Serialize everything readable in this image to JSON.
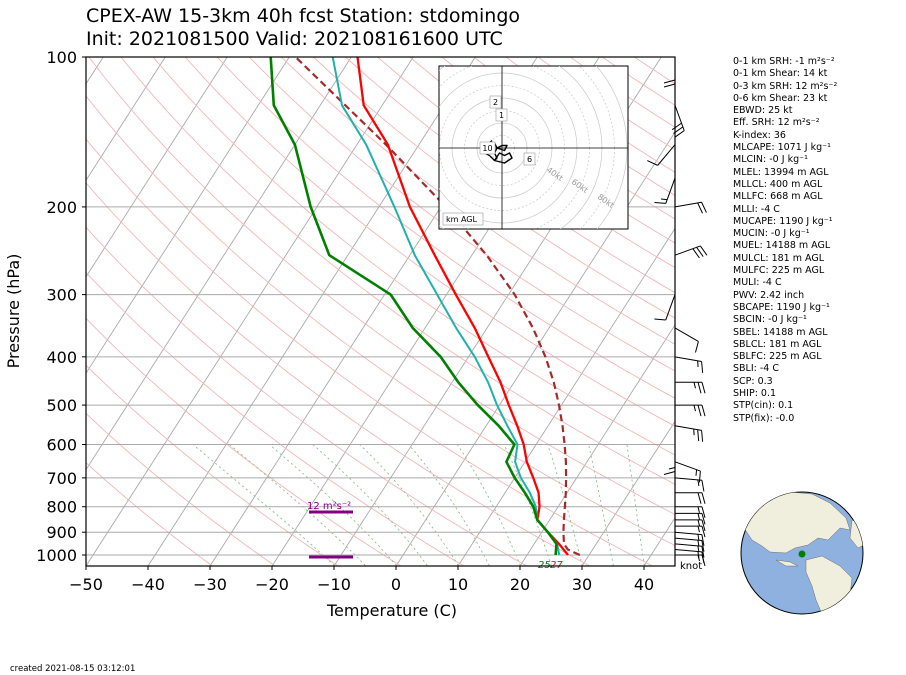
{
  "header": {
    "title_line1": "CPEX-AW 15-3km  40h fcst  Station: stdomingo",
    "title_line2": "Init: 2021081500  Valid: 202108161600 UTC"
  },
  "footer": {
    "created": "created 2021-08-15 03:12:01"
  },
  "stats": [
    "0-1 km SRH: -1 m²s⁻²",
    "0-1 km Shear: 14 kt",
    "0-3 km SRH: 12 m²s⁻²",
    "0-6 km Shear: 23 kt",
    "EBWD: 25 kt",
    "Eff. SRH: 12 m²s⁻²",
    "K-index: 36",
    "MLCAPE: 1071 J kg⁻¹",
    "MLCIN: -0 J kg⁻¹",
    "MLEL: 13994 m AGL",
    "MLLCL: 400 m AGL",
    "MLLFC: 668 m AGL",
    "MLLI: -4 C",
    "MUCAPE: 1190 J kg⁻¹",
    "MUCIN: -0 J kg⁻¹",
    "MUEL: 14188 m AGL",
    "MULCL: 181 m AGL",
    "MULFC: 225 m AGL",
    "MULI: -4 C",
    "PWV: 2.42 inch",
    "SBCAPE: 1190 J kg⁻¹",
    "SBCIN: -0 J kg⁻¹",
    "SBEL: 14188 m AGL",
    "SBLCL: 181 m AGL",
    "SBLFC: 225 m AGL",
    "SBLI: -4 C",
    "SCP: 0.3",
    "SHIP: 0.1",
    "STP(cin): 0.1",
    "STP(fix): -0.0"
  ],
  "chart_data": {
    "type": "line",
    "subtype": "skew-T log-P",
    "xlabel": "Temperature (C)",
    "ylabel": "Pressure (hPa)",
    "xlim": [
      -50,
      45
    ],
    "ylim": [
      1050,
      100
    ],
    "y_scale": "log",
    "x_ticks": [
      -50,
      -40,
      -30,
      -20,
      -10,
      0,
      10,
      20,
      30,
      40
    ],
    "x_tick_labels": [
      "−50",
      "−40",
      "−30",
      "−20",
      "−10",
      "0",
      "10",
      "20",
      "30",
      "40"
    ],
    "y_ticks": [
      1000,
      900,
      800,
      700,
      600,
      500,
      400,
      300,
      200,
      100
    ],
    "y_tick_labels": [
      "1000",
      "900",
      "800",
      "700",
      "600",
      "500",
      "400",
      "300",
      "200",
      "100"
    ],
    "surface_temp_label": "27",
    "surface_dewpoint_label": "25",
    "srh_layer_label": "12 m²s⁻²",
    "wind_unit_label": "knot",
    "colors": {
      "temperature": "#ff0000",
      "dewpoint": "#008000",
      "wetbulb": "#20b2aa",
      "parcel": "#a52a2a",
      "srh_layer": "#800080",
      "isotherm": "#aaaaaa",
      "dry_adiabat": "#f4b6b6",
      "moist_adiabat": "#8fbc8f"
    },
    "series": [
      {
        "key": "temperature",
        "pressure": [
          1000,
          950,
          900,
          850,
          800,
          750,
          700,
          650,
          600,
          550,
          500,
          450,
          400,
          350,
          300,
          250,
          200,
          150,
          125,
          100
        ],
        "values": [
          26.6,
          24.0,
          21.0,
          18.0,
          17.0,
          15.4,
          13.0,
          10.3,
          8.0,
          5.0,
          1.5,
          -2.2,
          -6.8,
          -12.0,
          -18.5,
          -26.0,
          -35.0,
          -45.0,
          -53.0,
          -59.0
        ]
      },
      {
        "key": "dewpoint",
        "pressure": [
          1000,
          950,
          900,
          850,
          800,
          750,
          700,
          650,
          600,
          550,
          500,
          450,
          400,
          350,
          300,
          250,
          200,
          150,
          125,
          100
        ],
        "values": [
          24.6,
          23.6,
          21.0,
          18.0,
          16.0,
          13.2,
          10.0,
          7.0,
          6.5,
          2.0,
          -3.5,
          -9.0,
          -14.5,
          -22.0,
          -29.0,
          -43.0,
          -51.0,
          -60.0,
          -67.5,
          -73.0
        ]
      },
      {
        "key": "wetbulb",
        "pressure": [
          1000,
          950,
          900,
          850,
          800,
          750,
          700,
          650,
          600,
          550,
          500,
          450,
          400,
          350,
          300,
          250,
          200,
          150,
          125,
          100
        ],
        "values": [
          25.2,
          23.7,
          21.0,
          18.0,
          16.4,
          14.0,
          11.0,
          8.4,
          7.0,
          3.4,
          -0.4,
          -4.2,
          -9.0,
          -15.0,
          -21.5,
          -29.2,
          -37.5,
          -48.5,
          -56.5,
          -63.0
        ]
      },
      {
        "key": "parcel",
        "pressure": [
          1000,
          975,
          950,
          900,
          850,
          800,
          750,
          700,
          650,
          600,
          550,
          500,
          450,
          400,
          350,
          300,
          250,
          200,
          150,
          100
        ],
        "values": [
          28.5,
          26.0,
          24.8,
          23.5,
          22.3,
          21.1,
          19.8,
          18.3,
          16.6,
          14.6,
          12.3,
          9.6,
          6.4,
          2.4,
          -2.6,
          -9.0,
          -17.6,
          -29.2,
          -45.3,
          -69.0
        ]
      }
    ],
    "wind_barbs": {
      "pressure": [
        1000,
        975,
        950,
        925,
        900,
        875,
        850,
        825,
        800,
        750,
        700,
        650,
        600,
        550,
        500,
        450,
        400,
        350,
        300,
        250,
        200,
        175,
        150,
        125,
        100
      ],
      "speed_kt": [
        15,
        15,
        15,
        15,
        15,
        15,
        15,
        15,
        15,
        20,
        15,
        15,
        15,
        25,
        25,
        25,
        15,
        10,
        10,
        30,
        20,
        15,
        10,
        30,
        20
      ],
      "direction_deg": [
        90,
        95,
        95,
        95,
        95,
        90,
        90,
        90,
        90,
        90,
        95,
        110,
        180,
        100,
        90,
        90,
        100,
        120,
        200,
        70,
        80,
        200,
        220,
        160,
        180
      ]
    },
    "hodograph": {
      "label": "km AGL",
      "ring_labels": [
        "40kt",
        "60kt",
        "80kt"
      ],
      "height_markers": [
        "10",
        "2",
        "1",
        "6"
      ],
      "u_kt": [
        -6,
        -4,
        -3,
        -2,
        0,
        2,
        1,
        -2,
        -3,
        -2,
        -3,
        -1,
        1,
        3,
        4,
        1,
        -3,
        -5,
        -7,
        -6,
        -4
      ],
      "v_kt": [
        0,
        1,
        2,
        0,
        1,
        1,
        -1,
        0,
        -2,
        -4,
        -5,
        -2,
        -3,
        -2,
        -4,
        -6,
        -5,
        -3,
        -2,
        1,
        3
      ]
    }
  }
}
